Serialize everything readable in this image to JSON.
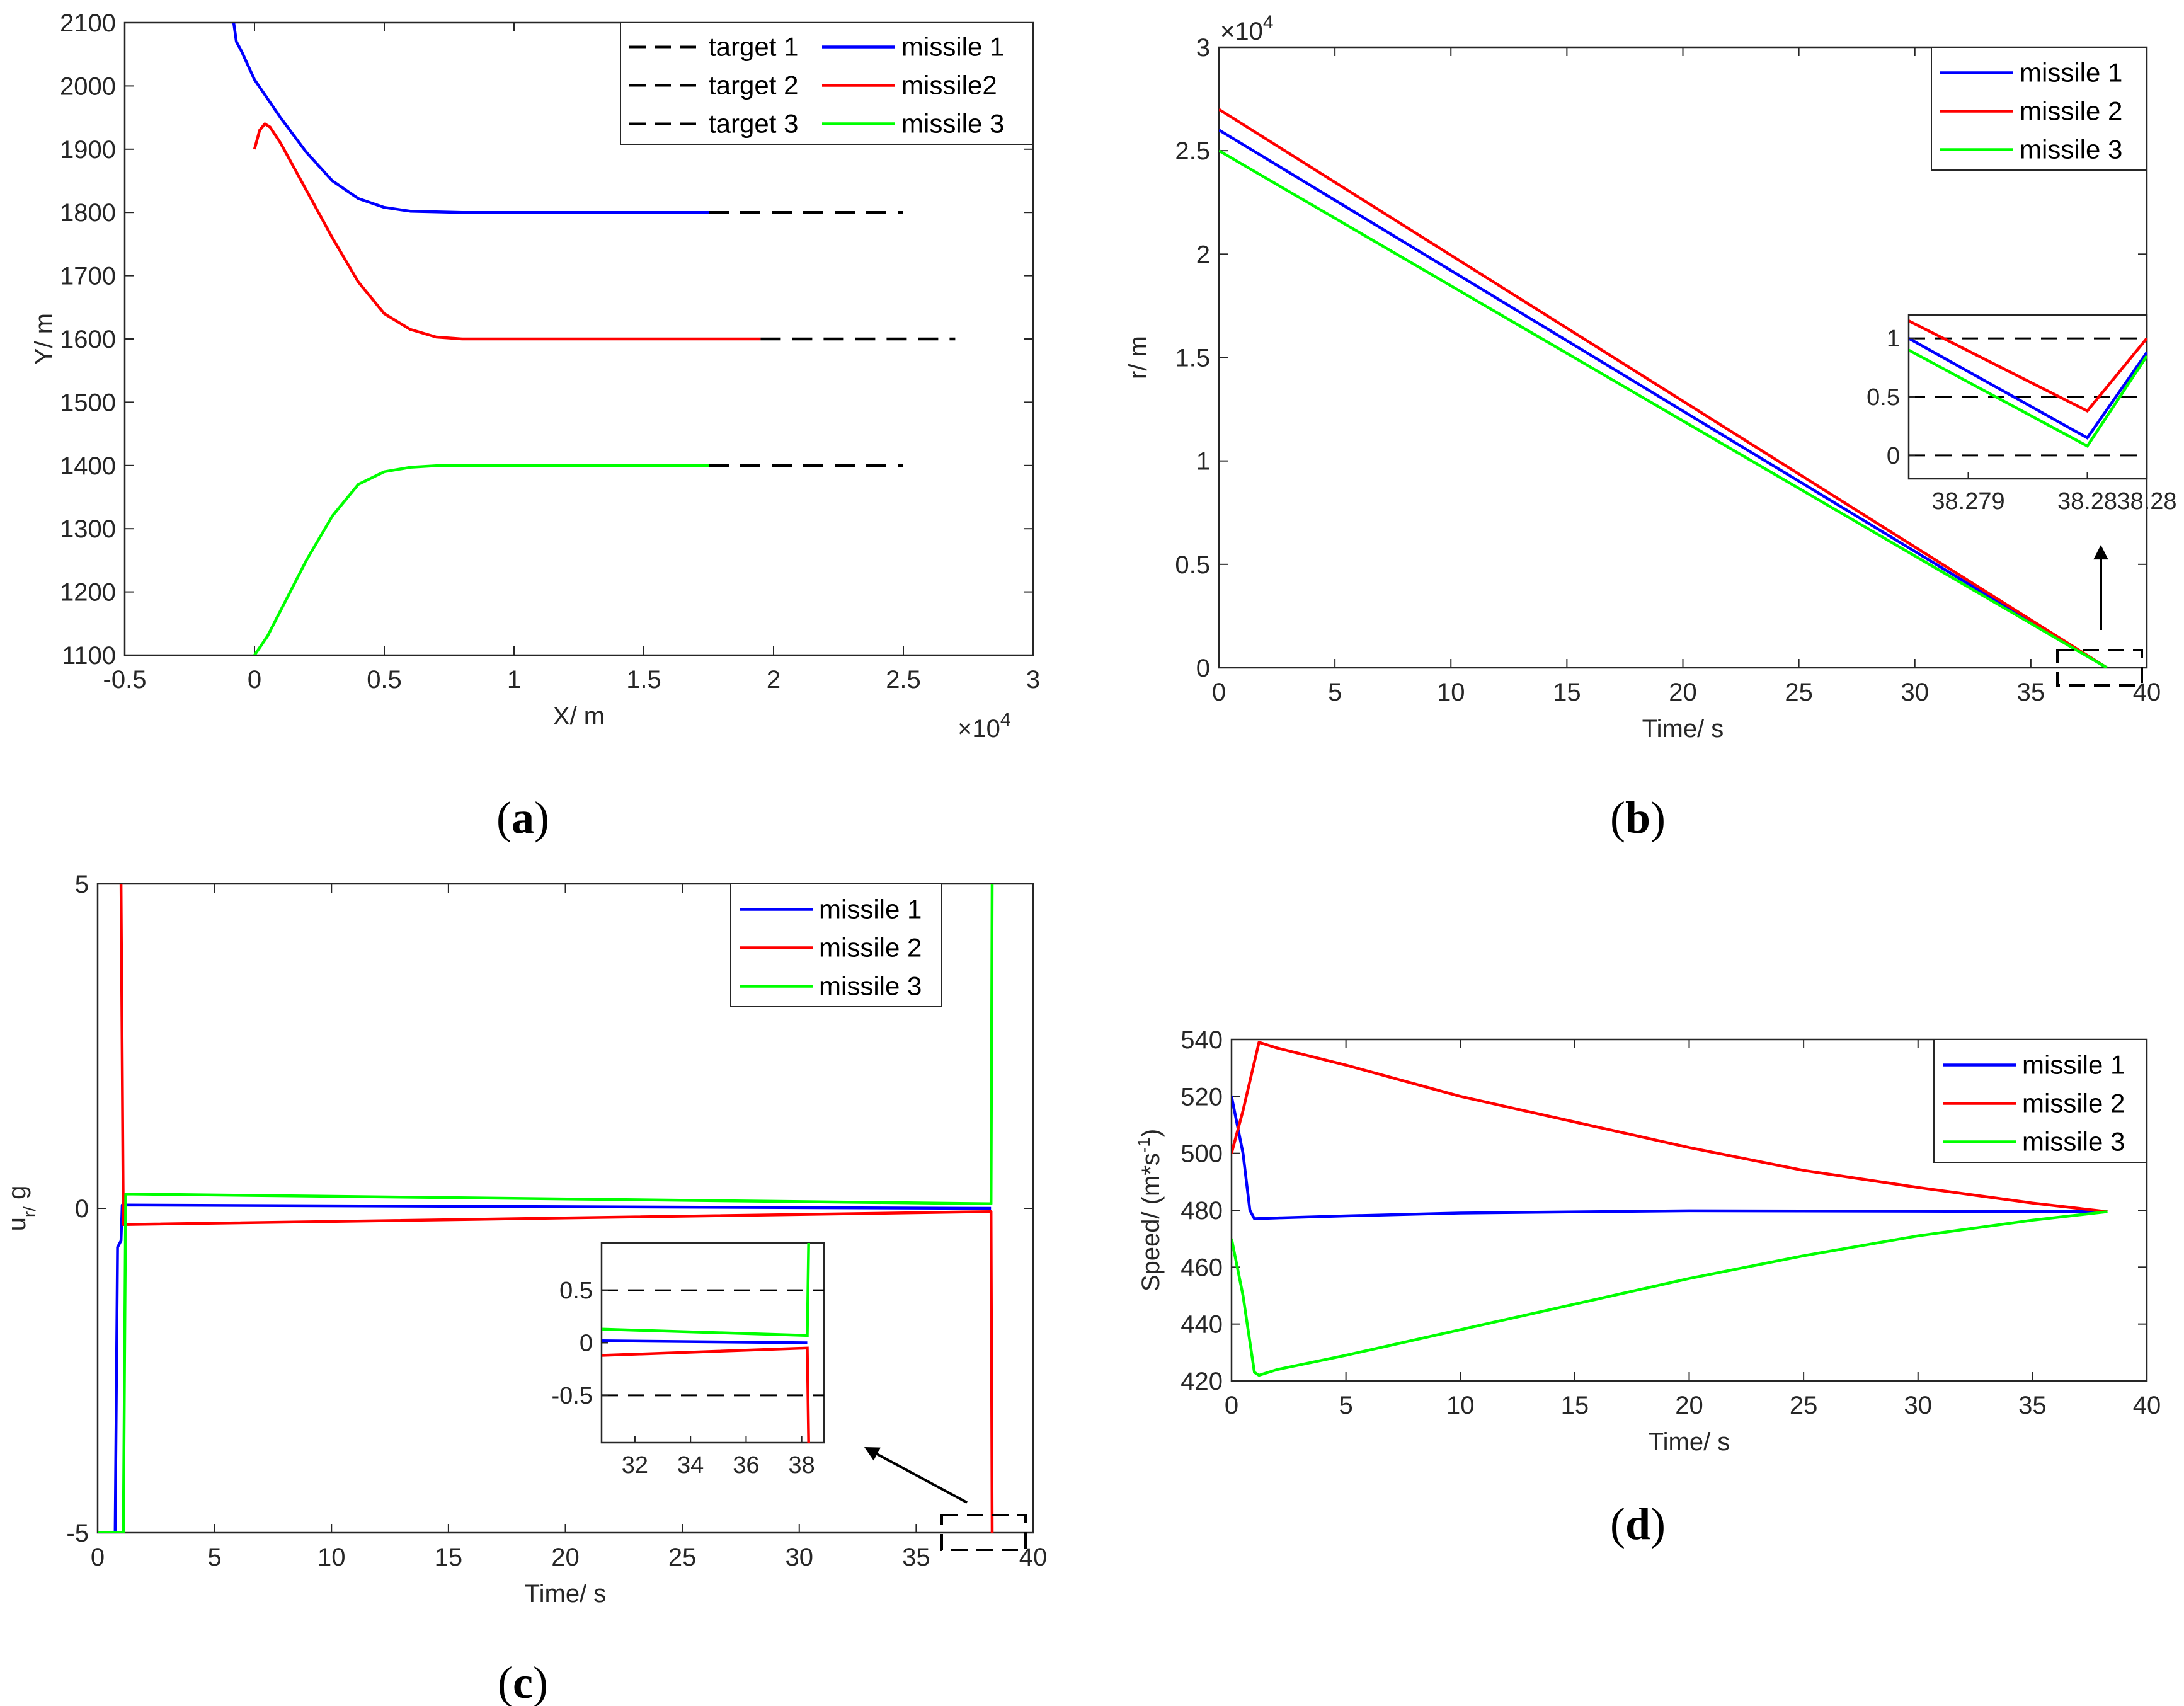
{
  "colors": {
    "blue": "#0000ff",
    "red": "#ff0000",
    "green": "#00ff00",
    "target": "#000000"
  },
  "chart_data": [
    {
      "id": "a",
      "type": "line",
      "caption": "a",
      "xlabel": "X/ m",
      "ylabel": "Y/ m",
      "xlim": [
        -5000,
        30000
      ],
      "ylim": [
        1100,
        2100
      ],
      "x_exponent": "×10",
      "x_exponent_power": "4",
      "xticks": [
        -5000,
        0,
        5000,
        10000,
        15000,
        20000,
        25000,
        30000
      ],
      "xtick_labels": [
        "-0.5",
        "0",
        "0.5",
        "1",
        "1.5",
        "2",
        "2.5",
        "3"
      ],
      "yticks": [
        1100,
        1200,
        1300,
        1400,
        1500,
        1600,
        1700,
        1800,
        1900,
        2000,
        2100
      ],
      "ytick_labels": [
        "1100",
        "1200",
        "1300",
        "1400",
        "1500",
        "1600",
        "1700",
        "1800",
        "1900",
        "2000",
        "2100"
      ],
      "legend": [
        [
          "target 1",
          "missile 1"
        ],
        [
          "target 2",
          "missile2"
        ],
        [
          "target 3",
          "missile 3"
        ]
      ],
      "series": [
        {
          "name": "missile 1",
          "color": "blue",
          "dash": false,
          "points": [
            [
              -800,
              2100
            ],
            [
              -700,
              2070
            ],
            [
              -500,
              2055
            ],
            [
              0,
              2010
            ],
            [
              1000,
              1950
            ],
            [
              2000,
              1895
            ],
            [
              3000,
              1850
            ],
            [
              4000,
              1822
            ],
            [
              5000,
              1808
            ],
            [
              6000,
              1802
            ],
            [
              8000,
              1800
            ],
            [
              10000,
              1800
            ],
            [
              17500,
              1800
            ]
          ]
        },
        {
          "name": "missile2",
          "color": "red",
          "dash": false,
          "points": [
            [
              0,
              1900
            ],
            [
              200,
              1930
            ],
            [
              400,
              1940
            ],
            [
              600,
              1935
            ],
            [
              1000,
              1910
            ],
            [
              2000,
              1835
            ],
            [
              3000,
              1760
            ],
            [
              4000,
              1690
            ],
            [
              5000,
              1640
            ],
            [
              6000,
              1615
            ],
            [
              7000,
              1603
            ],
            [
              8000,
              1600
            ],
            [
              10000,
              1600
            ],
            [
              19500,
              1600
            ]
          ]
        },
        {
          "name": "missile 3",
          "color": "green",
          "dash": false,
          "points": [
            [
              0,
              1100
            ],
            [
              500,
              1130
            ],
            [
              1000,
              1170
            ],
            [
              2000,
              1250
            ],
            [
              3000,
              1320
            ],
            [
              4000,
              1370
            ],
            [
              5000,
              1390
            ],
            [
              6000,
              1397
            ],
            [
              7000,
              1399.5
            ],
            [
              9000,
              1400
            ],
            [
              17500,
              1400
            ]
          ]
        },
        {
          "name": "target 1",
          "color": "target",
          "dash": true,
          "points": [
            [
              17500,
              1800
            ],
            [
              25000,
              1800
            ]
          ]
        },
        {
          "name": "target 2",
          "color": "target",
          "dash": true,
          "points": [
            [
              19500,
              1600
            ],
            [
              27000,
              1600
            ]
          ]
        },
        {
          "name": "target 3",
          "color": "target",
          "dash": true,
          "points": [
            [
              17500,
              1400
            ],
            [
              25000,
              1400
            ]
          ]
        }
      ]
    },
    {
      "id": "b",
      "type": "line",
      "caption": "b",
      "xlabel": "Time/ s",
      "ylabel": "r/ m",
      "xlim": [
        0,
        40
      ],
      "ylim": [
        0,
        30000
      ],
      "y_exponent": "×10",
      "y_exponent_power": "4",
      "xticks": [
        0,
        5,
        10,
        15,
        20,
        25,
        30,
        35,
        40
      ],
      "xtick_labels": [
        "0",
        "5",
        "10",
        "15",
        "20",
        "25",
        "30",
        "35",
        "40"
      ],
      "yticks": [
        0,
        5000,
        10000,
        15000,
        20000,
        25000,
        30000
      ],
      "ytick_labels": [
        "0",
        "0.5",
        "1",
        "1.5",
        "2",
        "2.5",
        "3"
      ],
      "legend": [
        "missile 1",
        "missile 2",
        "missile 3"
      ],
      "series": [
        {
          "name": "missile 1",
          "color": "blue",
          "points": [
            [
              0,
              26000
            ],
            [
              38.28,
              0
            ]
          ]
        },
        {
          "name": "missile 2",
          "color": "red",
          "points": [
            [
              0,
              27000
            ],
            [
              38.28,
              0
            ]
          ]
        },
        {
          "name": "missile 3",
          "color": "green",
          "points": [
            [
              0,
              25000
            ],
            [
              38.28,
              0
            ]
          ]
        }
      ],
      "inset": {
        "xlim": [
          38.2785,
          38.2805
        ],
        "ylim": [
          -0.2,
          1.2
        ],
        "xticks": [
          38.279,
          38.28,
          38.2805
        ],
        "xtick_labels": [
          "38.279",
          "38.28",
          "38.28"
        ],
        "yticks": [
          0,
          0.5,
          1
        ],
        "ytick_labels": [
          "0",
          "0.5",
          "1"
        ],
        "dashed_levels": [
          0,
          0.5,
          1
        ],
        "series": [
          {
            "name": "missile 1",
            "color": "blue",
            "points": [
              [
                38.2785,
                1.0
              ],
              [
                38.28,
                0.15
              ],
              [
                38.2805,
                0.88
              ]
            ]
          },
          {
            "name": "missile 2",
            "color": "red",
            "points": [
              [
                38.2785,
                1.15
              ],
              [
                38.28,
                0.38
              ],
              [
                38.2805,
                1.0
              ]
            ]
          },
          {
            "name": "missile 3",
            "color": "green",
            "points": [
              [
                38.2785,
                0.9
              ],
              [
                38.28,
                0.08
              ],
              [
                38.2805,
                0.85
              ]
            ]
          }
        ]
      }
    },
    {
      "id": "c",
      "type": "line",
      "caption": "c",
      "xlabel": "Time/ s",
      "ylabel": "u",
      "ylabel_sub": "r/",
      "ylabel_tail": " g",
      "xlim": [
        0,
        40
      ],
      "ylim": [
        -5,
        5
      ],
      "xticks": [
        0,
        5,
        10,
        15,
        20,
        25,
        30,
        35,
        40
      ],
      "xtick_labels": [
        "0",
        "5",
        "10",
        "15",
        "20",
        "25",
        "30",
        "35",
        "40"
      ],
      "yticks": [
        -5,
        0,
        5
      ],
      "ytick_labels": [
        "-5",
        "0",
        "5"
      ],
      "legend": [
        "missile 1",
        "missile 2",
        "missile 3"
      ],
      "series": [
        {
          "name": "missile 1",
          "color": "blue",
          "points": [
            [
              0.6,
              -5
            ],
            [
              0.75,
              -5
            ],
            [
              0.85,
              -0.6
            ],
            [
              1.0,
              -0.5
            ],
            [
              1.05,
              0.05
            ],
            [
              38.2,
              0.0
            ]
          ]
        },
        {
          "name": "missile 2",
          "color": "red",
          "points": [
            [
              1.0,
              5
            ],
            [
              1.1,
              -0.25
            ],
            [
              38.2,
              -0.05
            ],
            [
              38.25,
              -5
            ]
          ]
        },
        {
          "name": "missile 3",
          "color": "green",
          "points": [
            [
              0,
              -5
            ],
            [
              1.1,
              -5
            ],
            [
              1.2,
              0.22
            ],
            [
              38.2,
              0.07
            ],
            [
              38.25,
              5
            ]
          ]
        }
      ],
      "inset": {
        "xlim": [
          30.8,
          38.8
        ],
        "ylim": [
          -0.95,
          0.95
        ],
        "xticks": [
          32,
          34,
          36,
          38
        ],
        "xtick_labels": [
          "32",
          "34",
          "36",
          "38"
        ],
        "yticks": [
          -0.5,
          0,
          0.5
        ],
        "ytick_labels": [
          "-0.5",
          "0",
          "0.5"
        ],
        "dashed_levels": [
          -0.5,
          0.5
        ],
        "series": [
          {
            "name": "missile 1",
            "color": "blue",
            "points": [
              [
                30.8,
                0.02
              ],
              [
                38.2,
                0.0
              ]
            ]
          },
          {
            "name": "missile 2",
            "color": "red",
            "points": [
              [
                30.8,
                -0.12
              ],
              [
                38.2,
                -0.05
              ],
              [
                38.25,
                -0.95
              ]
            ]
          },
          {
            "name": "missile 3",
            "color": "green",
            "points": [
              [
                30.8,
                0.13
              ],
              [
                38.2,
                0.07
              ],
              [
                38.25,
                0.95
              ]
            ]
          }
        ]
      }
    },
    {
      "id": "d",
      "type": "line",
      "caption": "d",
      "xlabel": "Time/ s",
      "ylabel": "Speed/ (m*s",
      "ylabel_sup": "-1",
      "ylabel_tail": ")",
      "xlim": [
        0,
        40
      ],
      "ylim": [
        420,
        540
      ],
      "xticks": [
        0,
        5,
        10,
        15,
        20,
        25,
        30,
        35,
        40
      ],
      "xtick_labels": [
        "0",
        "5",
        "10",
        "15",
        "20",
        "25",
        "30",
        "35",
        "40"
      ],
      "yticks": [
        420,
        440,
        460,
        480,
        500,
        520,
        540
      ],
      "ytick_labels": [
        "420",
        "440",
        "460",
        "480",
        "500",
        "520",
        "540"
      ],
      "legend": [
        "missile 1",
        "missile 2",
        "missile 3"
      ],
      "series": [
        {
          "name": "missile 1",
          "color": "blue",
          "points": [
            [
              0,
              520
            ],
            [
              0.5,
              500
            ],
            [
              0.8,
              480
            ],
            [
              1.0,
              477
            ],
            [
              2,
              477.3
            ],
            [
              5,
              478
            ],
            [
              10,
              479
            ],
            [
              20,
              479.8
            ],
            [
              38.28,
              479.5
            ]
          ]
        },
        {
          "name": "missile 2",
          "color": "red",
          "points": [
            [
              0,
              500
            ],
            [
              0.5,
              515
            ],
            [
              1.2,
              539
            ],
            [
              2,
              537
            ],
            [
              5,
              531
            ],
            [
              10,
              520
            ],
            [
              15,
              511
            ],
            [
              20,
              502
            ],
            [
              25,
              494
            ],
            [
              30,
              488
            ],
            [
              35,
              482.5
            ],
            [
              38.28,
              479.5
            ]
          ]
        },
        {
          "name": "missile 3",
          "color": "green",
          "points": [
            [
              0,
              470
            ],
            [
              0.5,
              450
            ],
            [
              1.0,
              423
            ],
            [
              1.2,
              422
            ],
            [
              2,
              424
            ],
            [
              5,
              429
            ],
            [
              10,
              438
            ],
            [
              15,
              447
            ],
            [
              20,
              456
            ],
            [
              25,
              464
            ],
            [
              30,
              471
            ],
            [
              35,
              476.5
            ],
            [
              38.28,
              479.5
            ]
          ]
        }
      ]
    }
  ]
}
